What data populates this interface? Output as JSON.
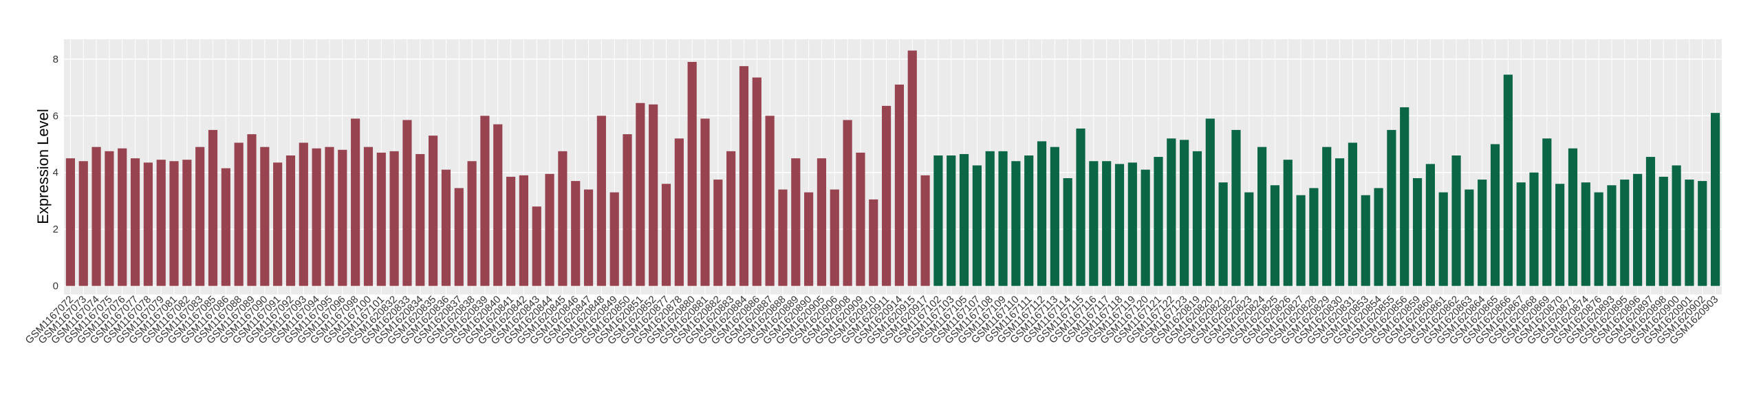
{
  "chart_data": {
    "type": "bar",
    "y_label": "Expression Level",
    "categories": [
      "GSM1167072",
      "GSM1167073",
      "GSM1167074",
      "GSM1167075",
      "GSM1167076",
      "GSM1167077",
      "GSM1167078",
      "GSM1167079",
      "GSM1167081",
      "GSM1167082",
      "GSM1167083",
      "GSM1167085",
      "GSM1167086",
      "GSM1167088",
      "GSM1167089",
      "GSM1167090",
      "GSM1167091",
      "GSM1167092",
      "GSM1167093",
      "GSM1167094",
      "GSM1167095",
      "GSM1167096",
      "GSM1167098",
      "GSM1167100",
      "GSM1167101",
      "GSM1620832",
      "GSM1620833",
      "GSM1620834",
      "GSM1620835",
      "GSM1620836",
      "GSM1620837",
      "GSM1620838",
      "GSM1620839",
      "GSM1620840",
      "GSM1620841",
      "GSM1620842",
      "GSM1620843",
      "GSM1620844",
      "GSM1620845",
      "GSM1620846",
      "GSM1620847",
      "GSM1620848",
      "GSM1620849",
      "GSM1620850",
      "GSM1620851",
      "GSM1620852",
      "GSM1620877",
      "GSM1620878",
      "GSM1620880",
      "GSM1620881",
      "GSM1620882",
      "GSM1620883",
      "GSM1620884",
      "GSM1620886",
      "GSM1620887",
      "GSM1620888",
      "GSM1620889",
      "GSM1620890",
      "GSM1620905",
      "GSM1620906",
      "GSM1620908",
      "GSM1620909",
      "GSM1620910",
      "GSM1620911",
      "GSM1620914",
      "GSM1620915",
      "GSM1620917",
      "GSM1167102",
      "GSM1167103",
      "GSM1167105",
      "GSM1167107",
      "GSM1167108",
      "GSM1167109",
      "GSM1167110",
      "GSM1167111",
      "GSM1167112",
      "GSM1167113",
      "GSM1167114",
      "GSM1167115",
      "GSM1167116",
      "GSM1167117",
      "GSM1167118",
      "GSM1167119",
      "GSM1167120",
      "GSM1167121",
      "GSM1167122",
      "GSM1167123",
      "GSM1620819",
      "GSM1620820",
      "GSM1620821",
      "GSM1620822",
      "GSM1620823",
      "GSM1620824",
      "GSM1620825",
      "GSM1620826",
      "GSM1620827",
      "GSM1620828",
      "GSM1620829",
      "GSM1620830",
      "GSM1620831",
      "GSM1620853",
      "GSM1620854",
      "GSM1620855",
      "GSM1620856",
      "GSM1620859",
      "GSM1620860",
      "GSM1620861",
      "GSM1620862",
      "GSM1620863",
      "GSM1620864",
      "GSM1620865",
      "GSM1620866",
      "GSM1620867",
      "GSM1620868",
      "GSM1620869",
      "GSM1620870",
      "GSM1620871",
      "GSM1620874",
      "GSM1620876",
      "GSM1620893",
      "GSM1620895",
      "GSM1620896",
      "GSM1620897",
      "GSM1620898",
      "GSM1620900",
      "GSM1620901",
      "GSM1620902",
      "GSM1620903"
    ],
    "values": [
      4.5,
      4.4,
      4.9,
      4.75,
      4.85,
      4.5,
      4.35,
      4.45,
      4.4,
      4.45,
      4.9,
      5.5,
      4.15,
      5.05,
      5.35,
      4.9,
      4.35,
      4.6,
      5.05,
      4.85,
      4.9,
      4.8,
      5.9,
      4.9,
      4.7,
      4.75,
      5.85,
      4.65,
      5.3,
      4.1,
      3.45,
      4.4,
      6.0,
      5.7,
      3.85,
      3.9,
      2.8,
      3.95,
      4.75,
      3.7,
      3.4,
      6.0,
      3.3,
      5.35,
      6.45,
      6.4,
      3.6,
      5.2,
      7.9,
      5.9,
      3.75,
      4.75,
      7.75,
      7.35,
      6.0,
      3.4,
      4.5,
      3.3,
      4.5,
      3.4,
      5.85,
      4.7,
      3.05,
      6.35,
      7.1,
      8.3,
      3.9,
      4.6,
      4.6,
      4.65,
      4.25,
      4.75,
      4.75,
      4.4,
      4.6,
      5.1,
      4.9,
      3.8,
      5.55,
      4.4,
      4.4,
      4.3,
      4.35,
      4.1,
      4.55,
      5.2,
      5.15,
      4.75,
      5.9,
      3.65,
      5.5,
      3.3,
      4.9,
      3.55,
      4.45,
      3.2,
      3.45,
      4.9,
      4.5,
      5.05,
      3.2,
      3.45,
      5.5,
      6.3,
      3.8,
      4.3,
      3.3,
      4.6,
      3.4,
      3.75,
      5.0,
      7.45,
      3.65,
      4.0,
      5.2,
      3.6,
      4.85,
      3.65,
      3.3,
      3.55,
      3.75,
      3.95,
      4.55,
      3.85,
      4.25,
      3.75,
      3.7,
      6.1
    ],
    "colors": [
      "#984350",
      "#984350",
      "#984350",
      "#984350",
      "#984350",
      "#984350",
      "#984350",
      "#984350",
      "#984350",
      "#984350",
      "#984350",
      "#984350",
      "#984350",
      "#984350",
      "#984350",
      "#984350",
      "#984350",
      "#984350",
      "#984350",
      "#984350",
      "#984350",
      "#984350",
      "#984350",
      "#984350",
      "#984350",
      "#984350",
      "#984350",
      "#984350",
      "#984350",
      "#984350",
      "#984350",
      "#984350",
      "#984350",
      "#984350",
      "#984350",
      "#984350",
      "#984350",
      "#984350",
      "#984350",
      "#984350",
      "#984350",
      "#984350",
      "#984350",
      "#984350",
      "#984350",
      "#984350",
      "#984350",
      "#984350",
      "#984350",
      "#984350",
      "#984350",
      "#984350",
      "#984350",
      "#984350",
      "#984350",
      "#984350",
      "#984350",
      "#984350",
      "#984350",
      "#984350",
      "#984350",
      "#984350",
      "#984350",
      "#984350",
      "#984350",
      "#984350",
      "#984350",
      "#0b6646",
      "#0b6646",
      "#0b6646",
      "#0b6646",
      "#0b6646",
      "#0b6646",
      "#0b6646",
      "#0b6646",
      "#0b6646",
      "#0b6646",
      "#0b6646",
      "#0b6646",
      "#0b6646",
      "#0b6646",
      "#0b6646",
      "#0b6646",
      "#0b6646",
      "#0b6646",
      "#0b6646",
      "#0b6646",
      "#0b6646",
      "#0b6646",
      "#0b6646",
      "#0b6646",
      "#0b6646",
      "#0b6646",
      "#0b6646",
      "#0b6646",
      "#0b6646",
      "#0b6646",
      "#0b6646",
      "#0b6646",
      "#0b6646",
      "#0b6646",
      "#0b6646",
      "#0b6646",
      "#0b6646",
      "#0b6646",
      "#0b6646",
      "#0b6646",
      "#0b6646",
      "#0b6646",
      "#0b6646",
      "#0b6646",
      "#0b6646",
      "#0b6646",
      "#0b6646",
      "#0b6646",
      "#0b6646",
      "#0b6646",
      "#0b6646",
      "#0b6646",
      "#0b6646",
      "#0b6646",
      "#0b6646",
      "#0b6646",
      "#0b6646",
      "#0b6646",
      "#0b6646",
      "#0b6646",
      "#0b6646"
    ],
    "ylim": [
      -0.3,
      8.7
    ],
    "yticks": [
      0,
      2,
      4,
      6,
      8
    ],
    "grid": true
  }
}
